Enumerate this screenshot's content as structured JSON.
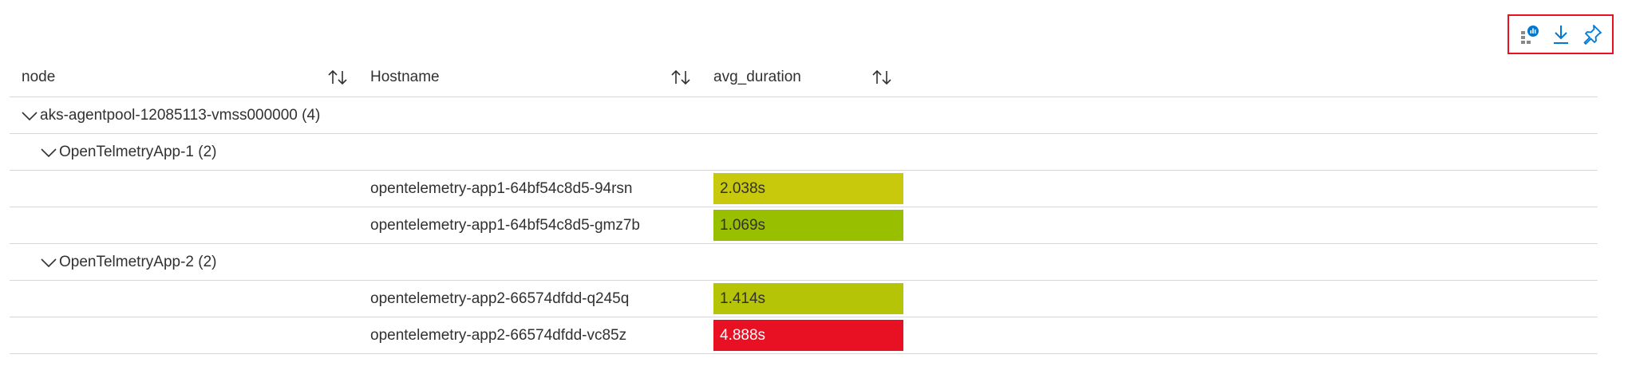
{
  "toolbar": {
    "icons": [
      "chart-visualize-icon",
      "download-icon",
      "pin-icon"
    ],
    "accent": "#0078d4",
    "highlight_border": "#e81123"
  },
  "columns": [
    {
      "key": "node",
      "label": "node"
    },
    {
      "key": "hostname",
      "label": "Hostname"
    },
    {
      "key": "avg_duration",
      "label": "avg_duration"
    }
  ],
  "groups": {
    "node_group": {
      "label": "aks-agentpool-12085113-vmss000000 (4)"
    },
    "app1": {
      "label": "OpenTelmetryApp-1 (2)"
    },
    "app2": {
      "label": "OpenTelmetryApp-2 (2)"
    }
  },
  "rows": {
    "r1": {
      "hostname": "opentelemetry-app1-64bf54c8d5-94rsn",
      "avg_duration": "2.038s",
      "color": "#c8c80c",
      "text_color": "#323130"
    },
    "r2": {
      "hostname": "opentelemetry-app1-64bf54c8d5-gmz7b",
      "avg_duration": "1.069s",
      "color": "#98bf00",
      "text_color": "#323130"
    },
    "r3": {
      "hostname": "opentelemetry-app2-66574dfdd-q245q",
      "avg_duration": "1.414s",
      "color": "#b5c406",
      "text_color": "#323130"
    },
    "r4": {
      "hostname": "opentelemetry-app2-66574dfdd-vc85z",
      "avg_duration": "4.888s",
      "color": "#e81123",
      "text_color": "#ffffff"
    }
  }
}
